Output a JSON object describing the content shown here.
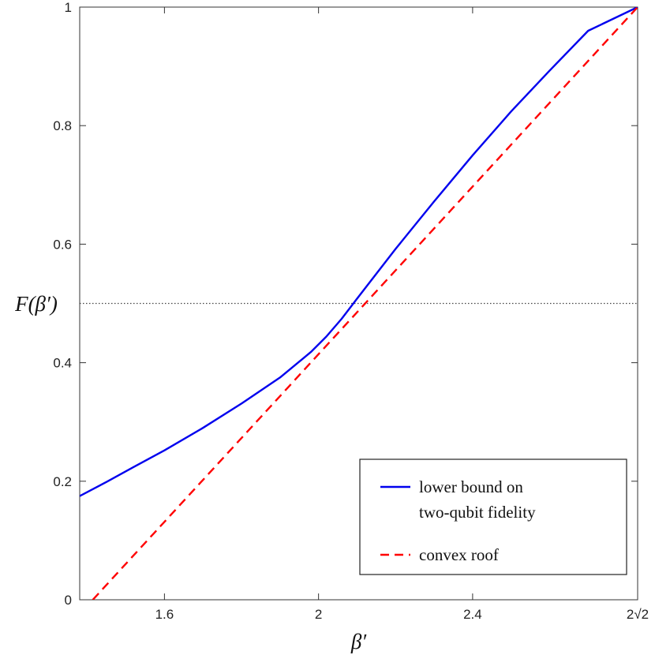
{
  "chart_data": {
    "type": "line",
    "xlabel": "β′",
    "ylabel": "F(β′)",
    "xlim": [
      1.38,
      2.8284
    ],
    "ylim": [
      0,
      1
    ],
    "grid": false,
    "legend_placement": "bottom-right",
    "x_ticks": [
      {
        "value": 1.6,
        "label": "1.6"
      },
      {
        "value": 2.0,
        "label": "2"
      },
      {
        "value": 2.4,
        "label": "2.4"
      },
      {
        "value": 2.8284,
        "label": "2√2"
      }
    ],
    "y_ticks": [
      {
        "value": 0,
        "label": "0"
      },
      {
        "value": 0.2,
        "label": "0.2"
      },
      {
        "value": 0.4,
        "label": "0.4"
      },
      {
        "value": 0.6,
        "label": "0.6"
      },
      {
        "value": 0.8,
        "label": "0.8"
      },
      {
        "value": 1,
        "label": "1"
      }
    ],
    "reference_line": {
      "y": 0.5,
      "style": "dotted",
      "color": "#444444"
    },
    "series": [
      {
        "name": "lower bound on two-qubit fidelity",
        "color": "#0000ee",
        "style": "solid",
        "x": [
          1.38,
          1.45,
          1.52,
          1.6,
          1.7,
          1.8,
          1.9,
          1.98,
          2.02,
          2.06,
          2.1,
          2.2,
          2.3,
          2.4,
          2.5,
          2.6,
          2.7,
          2.8284
        ],
        "y": [
          0.175,
          0.199,
          0.224,
          0.252,
          0.29,
          0.331,
          0.375,
          0.418,
          0.444,
          0.474,
          0.508,
          0.592,
          0.672,
          0.75,
          0.824,
          0.893,
          0.96,
          1.0
        ]
      },
      {
        "name": "convex roof",
        "color": "#ff0000",
        "style": "dashed",
        "x": [
          1.414,
          2.8284
        ],
        "y": [
          0,
          1
        ]
      }
    ]
  }
}
